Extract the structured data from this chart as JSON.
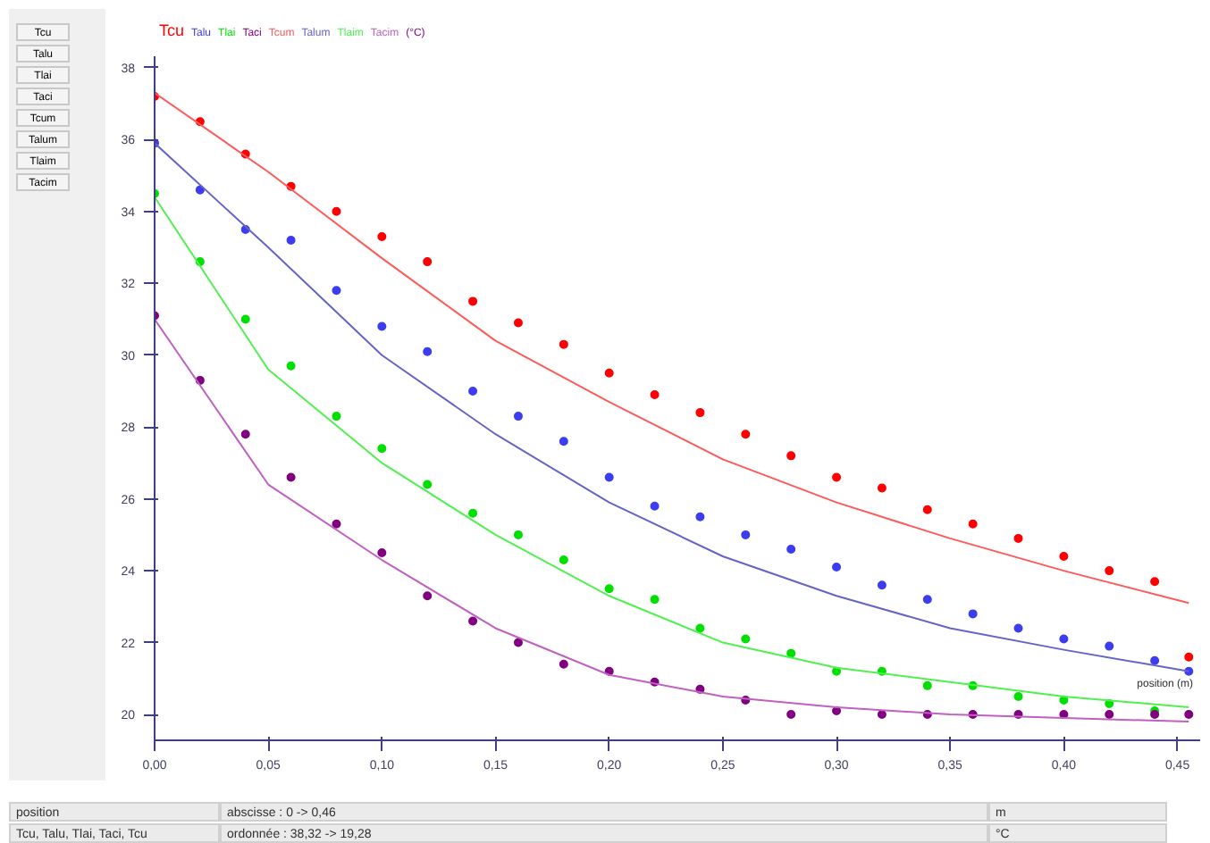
{
  "chart_data": {
    "type": "scatter",
    "ylabel": "(°C)",
    "xlim": [
      0,
      0.46
    ],
    "ylim": [
      19.28,
      38.32
    ],
    "xticks": [
      {
        "value": 0,
        "label": "0,00"
      },
      {
        "value": 0.05,
        "label": "0,05"
      },
      {
        "value": 0.1,
        "label": "0,10"
      },
      {
        "value": 0.15,
        "label": "0,15"
      },
      {
        "value": 0.2,
        "label": "0,20"
      },
      {
        "value": 0.25,
        "label": "0,25"
      },
      {
        "value": 0.3,
        "label": "0,30"
      },
      {
        "value": 0.35,
        "label": "0,35"
      },
      {
        "value": 0.4,
        "label": "0,40"
      },
      {
        "value": 0.45,
        "label": "0,45"
      }
    ],
    "yticks": [
      20,
      22,
      24,
      26,
      28,
      30,
      32,
      34,
      36,
      38
    ],
    "x": [
      0,
      0.02,
      0.04,
      0.06,
      0.08,
      0.1,
      0.12,
      0.14,
      0.16,
      0.18,
      0.2,
      0.22,
      0.24,
      0.26,
      0.28,
      0.3,
      0.32,
      0.34,
      0.36,
      0.38,
      0.4,
      0.42,
      0.44,
      0.455
    ],
    "grid": false,
    "marker": "circle",
    "series": [
      {
        "name": "Tcu",
        "color": "#ff0000",
        "values": [
          37.2,
          36.5,
          35.6,
          34.7,
          34.0,
          33.3,
          32.6,
          31.5,
          30.9,
          30.3,
          29.5,
          28.9,
          28.4,
          27.8,
          27.2,
          26.6,
          26.3,
          25.7,
          25.3,
          24.9,
          24.4,
          24.0,
          23.7,
          21.6
        ]
      },
      {
        "name": "Talu",
        "color": "#3c3cf0",
        "values": [
          35.9,
          34.6,
          33.5,
          33.2,
          31.8,
          30.8,
          30.1,
          29.0,
          28.3,
          27.6,
          26.6,
          25.8,
          25.5,
          25.0,
          24.6,
          24.1,
          23.6,
          23.2,
          22.8,
          22.4,
          22.1,
          21.9,
          21.5,
          21.2
        ]
      },
      {
        "name": "Tlai",
        "color": "#00e000",
        "values": [
          34.5,
          32.6,
          31.0,
          29.7,
          28.3,
          27.4,
          26.4,
          25.6,
          25.0,
          24.3,
          23.5,
          23.2,
          22.4,
          22.1,
          21.7,
          21.2,
          21.2,
          20.8,
          20.8,
          20.5,
          20.4,
          20.3,
          20.1,
          null
        ]
      },
      {
        "name": "Taci",
        "color": "#800080",
        "values": [
          31.1,
          29.3,
          27.8,
          26.6,
          25.3,
          24.5,
          23.3,
          22.6,
          22.0,
          21.4,
          21.2,
          20.9,
          20.7,
          20.4,
          20.0,
          20.1,
          20.0,
          20.0,
          20.0,
          20.0,
          20.0,
          20.0,
          20.0,
          20.0
        ]
      },
      {
        "name": "Tcum",
        "type": "line",
        "marker": "none",
        "color": "#ff5a5a",
        "x": [
          0,
          0.05,
          0.1,
          0.15,
          0.2,
          0.25,
          0.3,
          0.35,
          0.4,
          0.455
        ],
        "values": [
          37.3,
          35.1,
          32.7,
          30.4,
          28.7,
          27.1,
          25.9,
          24.9,
          24.0,
          23.1
        ]
      },
      {
        "name": "Talum",
        "type": "line",
        "marker": "none",
        "color": "#6464c8",
        "x": [
          0,
          0.05,
          0.1,
          0.15,
          0.2,
          0.25,
          0.3,
          0.35,
          0.4,
          0.455
        ],
        "values": [
          35.9,
          33.0,
          30.0,
          27.8,
          25.9,
          24.4,
          23.3,
          22.4,
          21.8,
          21.2
        ]
      },
      {
        "name": "Tlaim",
        "type": "line",
        "marker": "none",
        "color": "#50f050",
        "x": [
          0,
          0.05,
          0.1,
          0.15,
          0.2,
          0.25,
          0.3,
          0.35,
          0.4,
          0.455
        ],
        "values": [
          34.4,
          29.6,
          27.0,
          25.0,
          23.3,
          22.0,
          21.3,
          20.9,
          20.5,
          20.2
        ]
      },
      {
        "name": "Tacim",
        "type": "line",
        "marker": "none",
        "color": "#c060c0",
        "x": [
          0,
          0.05,
          0.1,
          0.15,
          0.2,
          0.25,
          0.3,
          0.35,
          0.4,
          0.455
        ],
        "values": [
          31.0,
          26.4,
          24.3,
          22.4,
          21.1,
          20.5,
          20.2,
          20.0,
          19.9,
          19.8
        ]
      }
    ],
    "annotations": [
      "position (m)",
      "position",
      "abscisse : 0 -> 0,46",
      "m",
      "Tcu, Talu, Tlai, Taci, Tcu",
      "ordonnée : 38,32 -> 19,28",
      "°C",
      "Tcu",
      "Talu",
      "Tlai",
      "Taci",
      "Tcum",
      "Talum",
      "Tlaim",
      "Tacim"
    ]
  }
}
